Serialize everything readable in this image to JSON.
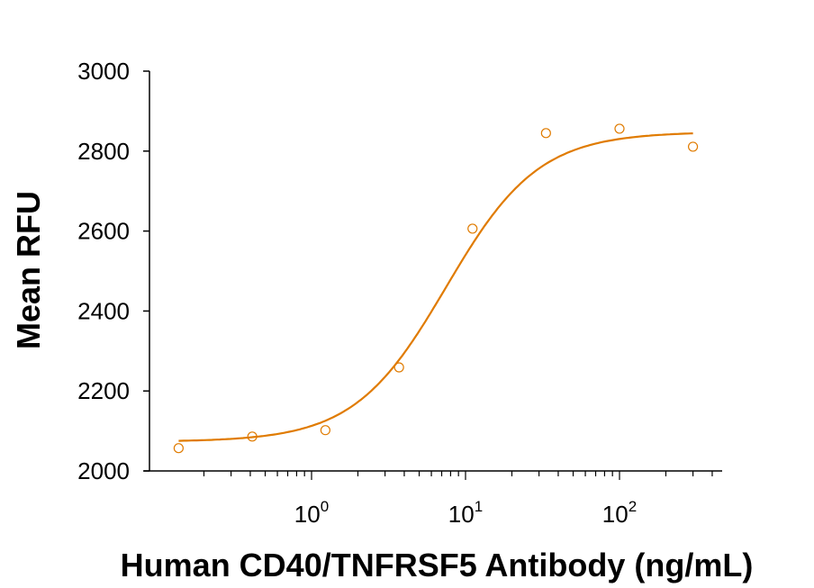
{
  "chart_data": {
    "type": "scatter",
    "title": "",
    "xlabel": "Human CD40/TNFRSF5 Antibody (ng/mL)",
    "ylabel": "Mean RFU",
    "x_scale": "log",
    "xlim": [
      0.1,
      450
    ],
    "ylim": [
      2000,
      3000
    ],
    "y_ticks": [
      2000,
      2200,
      2400,
      2600,
      2800,
      3000
    ],
    "x_ticks": [
      {
        "base": "10",
        "exp": "0",
        "value": 1
      },
      {
        "base": "10",
        "exp": "1",
        "value": 10
      },
      {
        "base": "10",
        "exp": "2",
        "value": 100
      }
    ],
    "grid": false,
    "legend": null,
    "color": "#E07B00",
    "series": [
      {
        "name": "Mean RFU",
        "marker": "open-circle",
        "x": [
          0.137,
          0.412,
          1.23,
          3.7,
          11.1,
          33.3,
          100,
          300
        ],
        "y": [
          2057,
          2086,
          2102,
          2259,
          2606,
          2845,
          2856,
          2811
        ]
      },
      {
        "name": "4PL fit",
        "line": "solid",
        "model": {
          "bottom": 2073,
          "top": 2848,
          "ec50": 7.5,
          "hill": 1.45
        },
        "x_range": [
          0.137,
          300
        ]
      }
    ]
  }
}
